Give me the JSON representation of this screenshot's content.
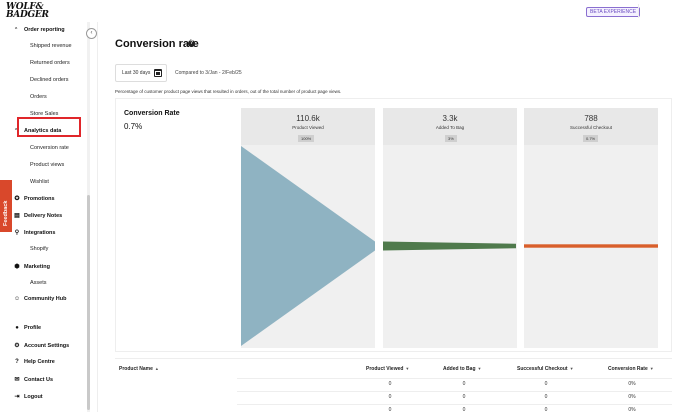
{
  "header": {
    "logo_text": "WOLF & BADGER",
    "beta_label": "BETA EXPERIENCE"
  },
  "sidebar": {
    "items": [
      {
        "label": "Order reporting",
        "level": 1,
        "icon": "chevron-up-icon"
      },
      {
        "label": "Shipped revenue",
        "level": 2
      },
      {
        "label": "Returned orders",
        "level": 2
      },
      {
        "label": "Declined orders",
        "level": 2
      },
      {
        "label": "Orders",
        "level": 2
      },
      {
        "label": "Store Sales",
        "level": 2
      },
      {
        "label": "Analytics data",
        "level": 1,
        "icon": "chevron-up-icon"
      },
      {
        "label": "Conversion rate",
        "level": 2,
        "active": true
      },
      {
        "label": "Product views",
        "level": 2
      },
      {
        "label": "Wishlist",
        "level": 2
      },
      {
        "label": "Promotions",
        "level": 1,
        "icon": "promotions-icon"
      },
      {
        "label": "Delivery Notes",
        "level": 1,
        "icon": "delivery-notes-icon"
      },
      {
        "label": "Integrations",
        "level": 1,
        "icon": "integrations-icon"
      },
      {
        "label": "Shopify",
        "level": 2
      },
      {
        "label": "Marketing",
        "level": 1,
        "icon": "marketing-icon"
      },
      {
        "label": "Assets",
        "level": 2
      },
      {
        "label": "Community Hub",
        "level": 1,
        "icon": "community-hub-icon"
      },
      {
        "label": "Profile",
        "level": 1,
        "icon": "profile-icon"
      },
      {
        "label": "Account Settings",
        "level": 1,
        "icon": "account-settings-icon"
      },
      {
        "label": "Help Centre",
        "level": 1,
        "icon": "help-centre-icon"
      },
      {
        "label": "Contact Us",
        "level": 1,
        "icon": "contact-us-icon"
      },
      {
        "label": "Logout",
        "level": 1,
        "icon": "logout-icon"
      }
    ],
    "feedback_label": "Feedback"
  },
  "main": {
    "title": "Conversion rate",
    "date_range_label": "Last 30 days",
    "compared_label": "Compared to 3/Jan - 2/Feb/25",
    "description": "Percentage of customer product page views that resulted in orders, out of the total number of product page views.",
    "conversion": {
      "label": "Conversion Rate",
      "value": "0.7%"
    },
    "funnel": [
      {
        "value": "110.6k",
        "label": "Product Viewed",
        "pct": "100%",
        "fraction": 1.0,
        "color": "#8fb3c2"
      },
      {
        "value": "3.3k",
        "label": "Added To Bag",
        "pct": "3%",
        "fraction": 0.03,
        "color": "#4f7a4c"
      },
      {
        "value": "788",
        "label": "Successful Checkout",
        "pct": "0.7%",
        "fraction": 0.007,
        "color": "#d95f2b"
      }
    ],
    "table": {
      "headers": [
        "Product Name",
        "Product Viewed",
        "Added to Bag",
        "Successful Checkout",
        "Conversion Rate"
      ],
      "rows": [
        [
          "",
          "0",
          "0",
          "0",
          "0%"
        ],
        [
          "",
          "0",
          "0",
          "0",
          "0%"
        ],
        [
          "",
          "0",
          "0",
          "0",
          "0%"
        ]
      ]
    }
  }
}
